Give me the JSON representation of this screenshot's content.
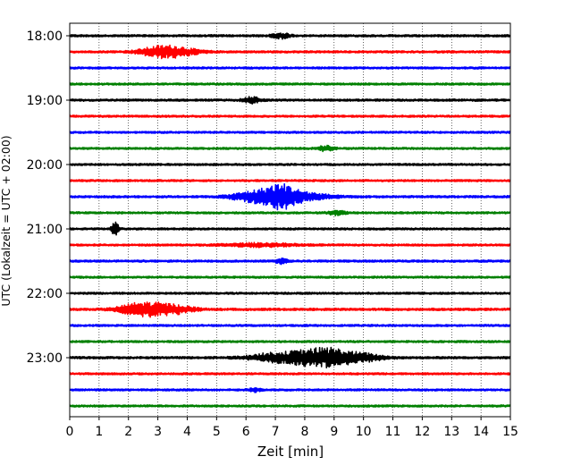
{
  "chart_data": {
    "type": "line",
    "xlabel": "Zeit  [min]",
    "ylabel": "UTC (Lokalzeit = UTC + 02:00)",
    "xlim": [
      0,
      15
    ],
    "x_ticks": [
      "0",
      "1",
      "2",
      "3",
      "4",
      "5",
      "6",
      "7",
      "8",
      "9",
      "10",
      "11",
      "12",
      "13",
      "14",
      "15"
    ],
    "y_ticks": [
      "18:00",
      "19:00",
      "20:00",
      "21:00",
      "22:00",
      "23:00"
    ],
    "grid": "vertical dotted at each minute",
    "trace_interval_min": 15,
    "series_colors": [
      "#000000",
      "#ff0000",
      "#0000ff",
      "#008000"
    ],
    "traces": [
      {
        "start": "18:00",
        "color": "#000000",
        "base_amp": 0.13,
        "events": [
          {
            "t": 7.2,
            "amp": 0.3,
            "dur": 0.3
          }
        ]
      },
      {
        "start": "18:15",
        "color": "#ff0000",
        "base_amp": 0.13,
        "events": [
          {
            "t": 3.0,
            "amp": 0.5,
            "dur": 0.7
          },
          {
            "t": 3.7,
            "amp": 0.45,
            "dur": 0.7
          }
        ]
      },
      {
        "start": "18:30",
        "color": "#0000ff",
        "base_amp": 0.12,
        "events": []
      },
      {
        "start": "18:45",
        "color": "#008000",
        "base_amp": 0.12,
        "events": []
      },
      {
        "start": "19:00",
        "color": "#000000",
        "base_amp": 0.13,
        "events": [
          {
            "t": 6.2,
            "amp": 0.35,
            "dur": 0.3
          }
        ]
      },
      {
        "start": "19:15",
        "color": "#ff0000",
        "base_amp": 0.12,
        "events": []
      },
      {
        "start": "19:30",
        "color": "#0000ff",
        "base_amp": 0.12,
        "events": []
      },
      {
        "start": "19:45",
        "color": "#008000",
        "base_amp": 0.12,
        "events": [
          {
            "t": 8.7,
            "amp": 0.28,
            "dur": 0.3
          }
        ]
      },
      {
        "start": "20:00",
        "color": "#000000",
        "base_amp": 0.12,
        "events": []
      },
      {
        "start": "20:15",
        "color": "#ff0000",
        "base_amp": 0.12,
        "events": []
      },
      {
        "start": "20:30",
        "color": "#0000ff",
        "base_amp": 0.13,
        "events": [
          {
            "t": 6.5,
            "amp": 0.75,
            "dur": 0.9
          },
          {
            "t": 7.2,
            "amp": 0.9,
            "dur": 0.5
          },
          {
            "t": 7.9,
            "amp": 0.5,
            "dur": 0.9
          }
        ]
      },
      {
        "start": "20:45",
        "color": "#008000",
        "base_amp": 0.12,
        "events": [
          {
            "t": 9.1,
            "amp": 0.25,
            "dur": 0.3
          }
        ]
      },
      {
        "start": "21:00",
        "color": "#000000",
        "base_amp": 0.12,
        "events": [
          {
            "t": 1.55,
            "amp": 0.9,
            "dur": 0.12
          }
        ]
      },
      {
        "start": "21:15",
        "color": "#ff0000",
        "base_amp": 0.12,
        "events": [
          {
            "t": 6.5,
            "amp": 0.2,
            "dur": 1.2
          }
        ]
      },
      {
        "start": "21:30",
        "color": "#0000ff",
        "base_amp": 0.13,
        "events": [
          {
            "t": 7.2,
            "amp": 0.3,
            "dur": 0.2
          }
        ]
      },
      {
        "start": "21:45",
        "color": "#008000",
        "base_amp": 0.12,
        "events": []
      },
      {
        "start": "22:00",
        "color": "#000000",
        "base_amp": 0.12,
        "events": []
      },
      {
        "start": "22:15",
        "color": "#ff0000",
        "base_amp": 0.14,
        "events": [
          {
            "t": 2.2,
            "amp": 0.55,
            "dur": 0.6
          },
          {
            "t": 2.9,
            "amp": 0.6,
            "dur": 0.6
          },
          {
            "t": 3.7,
            "amp": 0.4,
            "dur": 0.6
          }
        ]
      },
      {
        "start": "22:30",
        "color": "#0000ff",
        "base_amp": 0.12,
        "events": []
      },
      {
        "start": "22:45",
        "color": "#008000",
        "base_amp": 0.12,
        "events": []
      },
      {
        "start": "23:00",
        "color": "#000000",
        "base_amp": 0.14,
        "events": [
          {
            "t": 7.0,
            "amp": 0.55,
            "dur": 0.9
          },
          {
            "t": 8.0,
            "amp": 0.6,
            "dur": 0.6
          },
          {
            "t": 8.8,
            "amp": 1.0,
            "dur": 0.6
          },
          {
            "t": 9.8,
            "amp": 0.55,
            "dur": 0.8
          }
        ]
      },
      {
        "start": "23:15",
        "color": "#ff0000",
        "base_amp": 0.12,
        "events": []
      },
      {
        "start": "23:30",
        "color": "#0000ff",
        "base_amp": 0.12,
        "events": [
          {
            "t": 6.3,
            "amp": 0.2,
            "dur": 0.2
          }
        ]
      },
      {
        "start": "23:45",
        "color": "#008000",
        "base_amp": 0.12,
        "events": []
      }
    ]
  }
}
